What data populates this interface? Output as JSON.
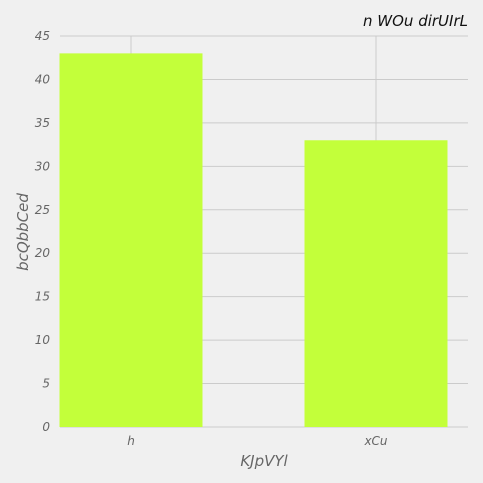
{
  "chart_data": {
    "type": "bar",
    "title": "n WOu dirUIrL",
    "xlabel": "KJpVYl",
    "ylabel": "bcQbbCed",
    "categories": [
      "h",
      "xCu"
    ],
    "values": [
      43,
      33
    ],
    "ylim": [
      0,
      45
    ],
    "yticks": [
      0,
      5,
      10,
      15,
      20,
      25,
      30,
      35,
      40,
      45
    ],
    "grid": true,
    "bar_color": "#c3ff3a",
    "background": "#f0f0f0"
  }
}
